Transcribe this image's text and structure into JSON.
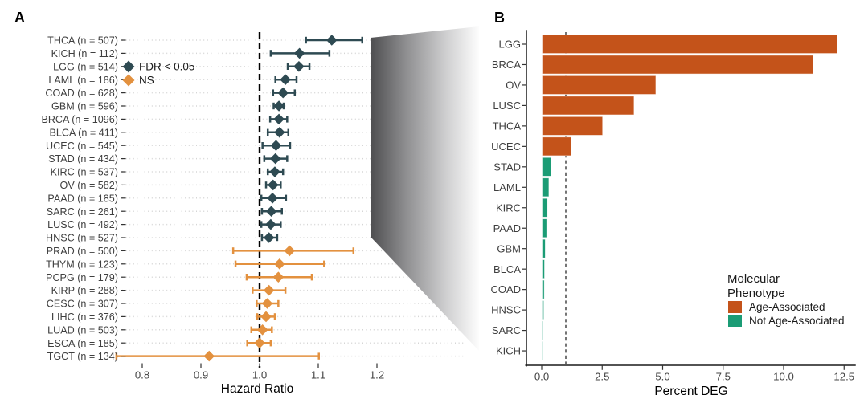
{
  "panels": {
    "a": {
      "label": "A"
    },
    "b": {
      "label": "B"
    }
  },
  "colors": {
    "fdr_significant": "#2E4A52",
    "not_significant": "#E3913F",
    "age_associated": "#C4531A",
    "not_age_associated": "#1B9C75",
    "reference_line": "#000000",
    "bar_reference_line": "#2B2B2B",
    "gridline": "#D5D5D5",
    "axis_text": "#404040",
    "tick_mark": "#333333"
  },
  "chart_data": [
    {
      "id": "hazard-ratio-forest-plot",
      "type": "scatter",
      "subtype": "forest-plot",
      "xlabel": "Hazard Ratio",
      "x_tick_labels": [
        "0.8",
        "0.9",
        "1.0",
        "1.1",
        "1.2"
      ],
      "x_tick_values": [
        0.8,
        0.9,
        1.0,
        1.1,
        1.2
      ],
      "xlim": [
        0.75,
        1.35
      ],
      "reference_line_x": 1.0,
      "grid": "dotted-horizontal",
      "legend_position": "inside-top-left",
      "legend": [
        {
          "label": "FDR < 0.05",
          "color_key": "fdr_significant",
          "marker": "diamond"
        },
        {
          "label": "NS",
          "color_key": "not_significant",
          "marker": "diamond"
        }
      ],
      "rows": [
        {
          "label": "THCA (n = 507)",
          "hr": 1.123,
          "ci_low": 1.079,
          "ci_high": 1.175,
          "group": "FDR < 0.05"
        },
        {
          "label": "KICH (n = 112)",
          "hr": 1.068,
          "ci_low": 1.019,
          "ci_high": 1.119,
          "group": "FDR < 0.05"
        },
        {
          "label": "LGG (n = 514)",
          "hr": 1.067,
          "ci_low": 1.048,
          "ci_high": 1.085,
          "group": "FDR < 0.05"
        },
        {
          "label": "LAML (n = 186)",
          "hr": 1.044,
          "ci_low": 1.027,
          "ci_high": 1.063,
          "group": "FDR < 0.05"
        },
        {
          "label": "COAD (n = 628)",
          "hr": 1.04,
          "ci_low": 1.023,
          "ci_high": 1.06,
          "group": "FDR < 0.05"
        },
        {
          "label": "GBM (n = 596)",
          "hr": 1.033,
          "ci_low": 1.024,
          "ci_high": 1.041,
          "group": "FDR < 0.05"
        },
        {
          "label": "BRCA (n = 1096)",
          "hr": 1.033,
          "ci_low": 1.018,
          "ci_high": 1.047,
          "group": "FDR < 0.05"
        },
        {
          "label": "BLCA (n = 411)",
          "hr": 1.034,
          "ci_low": 1.014,
          "ci_high": 1.049,
          "group": "FDR < 0.05"
        },
        {
          "label": "UCEC (n = 545)",
          "hr": 1.028,
          "ci_low": 1.005,
          "ci_high": 1.052,
          "group": "FDR < 0.05"
        },
        {
          "label": "STAD (n = 434)",
          "hr": 1.027,
          "ci_low": 1.008,
          "ci_high": 1.047,
          "group": "FDR < 0.05"
        },
        {
          "label": "KIRC (n = 537)",
          "hr": 1.026,
          "ci_low": 1.014,
          "ci_high": 1.04,
          "group": "FDR < 0.05"
        },
        {
          "label": "OV (n = 582)",
          "hr": 1.023,
          "ci_low": 1.011,
          "ci_high": 1.036,
          "group": "FDR < 0.05"
        },
        {
          "label": "PAAD (n = 185)",
          "hr": 1.022,
          "ci_low": 1.003,
          "ci_high": 1.045,
          "group": "FDR < 0.05"
        },
        {
          "label": "SARC (n = 261)",
          "hr": 1.02,
          "ci_low": 1.004,
          "ci_high": 1.038,
          "group": "FDR < 0.05"
        },
        {
          "label": "LUSC (n = 492)",
          "hr": 1.019,
          "ci_low": 1.003,
          "ci_high": 1.036,
          "group": "FDR < 0.05"
        },
        {
          "label": "HNSC (n = 527)",
          "hr": 1.016,
          "ci_low": 1.004,
          "ci_high": 1.03,
          "group": "FDR < 0.05"
        },
        {
          "label": "PRAD (n = 500)",
          "hr": 1.051,
          "ci_low": 0.955,
          "ci_high": 1.16,
          "group": "NS"
        },
        {
          "label": "THYM (n = 123)",
          "hr": 1.034,
          "ci_low": 0.959,
          "ci_high": 1.11,
          "group": "NS"
        },
        {
          "label": "PCPG (n = 179)",
          "hr": 1.032,
          "ci_low": 0.978,
          "ci_high": 1.089,
          "group": "NS"
        },
        {
          "label": "KIRP (n = 288)",
          "hr": 1.016,
          "ci_low": 0.988,
          "ci_high": 1.044,
          "group": "NS"
        },
        {
          "label": "CESC (n = 307)",
          "hr": 1.013,
          "ci_low": 0.995,
          "ci_high": 1.032,
          "group": "NS"
        },
        {
          "label": "LIHC (n = 376)",
          "hr": 1.011,
          "ci_low": 0.996,
          "ci_high": 1.026,
          "group": "NS"
        },
        {
          "label": "LUAD (n = 503)",
          "hr": 1.005,
          "ci_low": 0.986,
          "ci_high": 1.021,
          "group": "NS"
        },
        {
          "label": "ESCA (n = 185)",
          "hr": 1.0,
          "ci_low": 0.979,
          "ci_high": 1.019,
          "group": "NS"
        },
        {
          "label": "TGCT (n = 134)",
          "hr": 0.914,
          "ci_low": 0.756,
          "ci_high": 1.101,
          "group": "NS"
        }
      ]
    },
    {
      "id": "percent-deg-bar-chart",
      "type": "bar",
      "orientation": "horizontal",
      "xlabel": "Percent DEG",
      "x_tick_labels": [
        "0.0",
        "2.5",
        "5.0",
        "7.5",
        "10.0",
        "12.5"
      ],
      "x_tick_values": [
        0,
        2.5,
        5,
        7.5,
        10,
        12.5
      ],
      "xlim": [
        0,
        12.9
      ],
      "reference_line_x": 1.0,
      "grid": "off",
      "legend_title": "Molecular Phenotype",
      "legend_title_lines": [
        "Molecular",
        "Phenotype"
      ],
      "legend_position": "inside-right",
      "legend": [
        {
          "label": "Age-Associated",
          "color_key": "age_associated"
        },
        {
          "label": "Not Age-Associated",
          "color_key": "not_age_associated"
        }
      ],
      "categories": [
        "LGG",
        "BRCA",
        "OV",
        "LUSC",
        "THCA",
        "UCEC",
        "STAD",
        "LAML",
        "KIRC",
        "PAAD",
        "GBM",
        "BLCA",
        "COAD",
        "HNSC",
        "SARC",
        "KICH"
      ],
      "values": [
        12.2,
        11.2,
        4.7,
        3.8,
        2.5,
        1.2,
        0.37,
        0.28,
        0.22,
        0.19,
        0.13,
        0.1,
        0.09,
        0.07,
        0.03,
        0.01
      ],
      "phenotypes": [
        "Age-Associated",
        "Age-Associated",
        "Age-Associated",
        "Age-Associated",
        "Age-Associated",
        "Age-Associated",
        "Not Age-Associated",
        "Not Age-Associated",
        "Not Age-Associated",
        "Not Age-Associated",
        "Not Age-Associated",
        "Not Age-Associated",
        "Not Age-Associated",
        "Not Age-Associated",
        "Not Age-Associated",
        "Not Age-Associated"
      ]
    }
  ]
}
